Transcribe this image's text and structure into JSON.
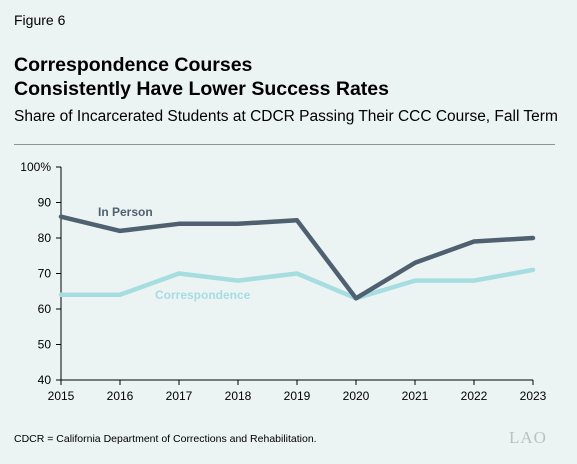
{
  "figure_label": "Figure 6",
  "title_line1": "Correspondence Courses",
  "title_line2": "Consistently Have Lower Success Rates",
  "subtitle": "Share of Incarcerated Students at CDCR Passing Their CCC Course, Fall Term",
  "footnote": "CDCR = California Department of Corrections and Rehabilitation.",
  "logo": "LAO",
  "chart_data": {
    "type": "line",
    "x": [
      2015,
      2016,
      2017,
      2018,
      2019,
      2020,
      2021,
      2022,
      2023
    ],
    "ylim": [
      40,
      100
    ],
    "yticks": [
      40,
      50,
      60,
      70,
      80,
      90,
      100
    ],
    "ytick_labels": [
      "40",
      "50",
      "60",
      "70",
      "80",
      "90",
      "100%"
    ],
    "series": [
      {
        "name": "In Person",
        "values": [
          86,
          82,
          84,
          84,
          85,
          63,
          73,
          79,
          80
        ],
        "color": "#4f6170"
      },
      {
        "name": "Correspondence",
        "values": [
          64,
          64,
          70,
          68,
          70,
          63,
          68,
          68,
          71
        ],
        "color": "#a6dde1"
      }
    ],
    "grid": false,
    "legend": "inline labels"
  }
}
